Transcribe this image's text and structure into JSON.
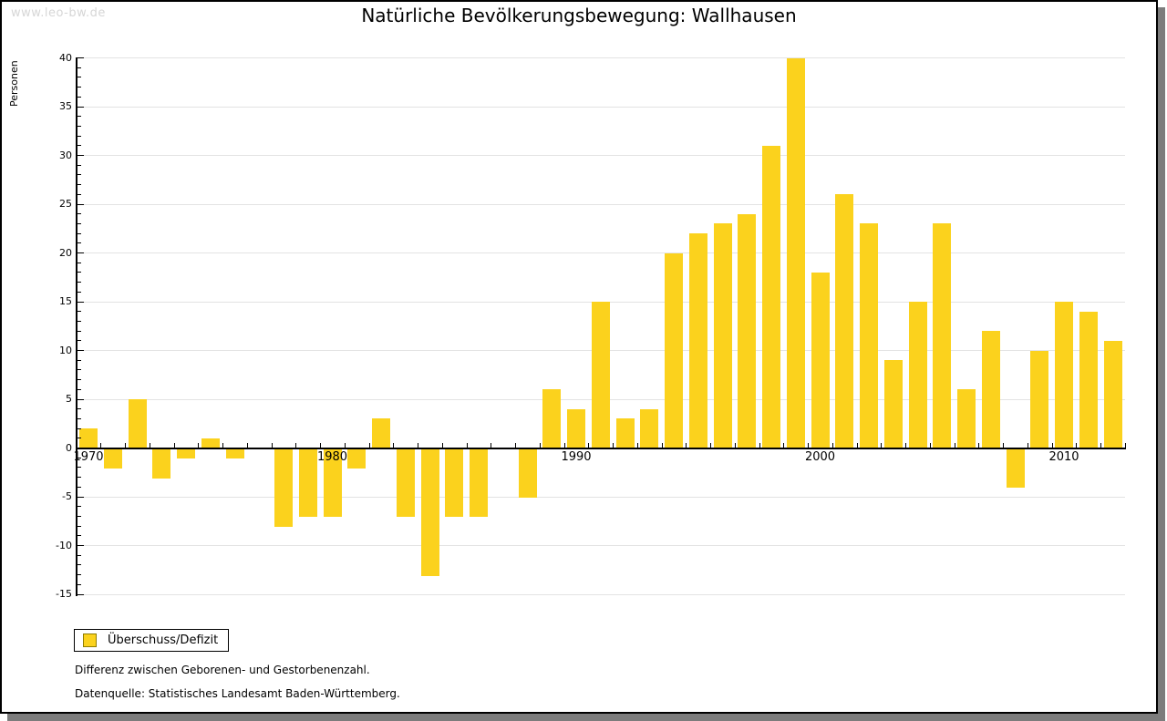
{
  "watermark": "www.leo-bw.de",
  "title": "Natürliche Bevölkerungsbewegung: Wallhausen",
  "legend": {
    "label": "Überschuss/Defizit"
  },
  "notes": {
    "line1": "Differenz zwischen Geborenen- und Gestorbenenzahl.",
    "line2": "Datenquelle: Statistisches Landesamt Baden-Württemberg."
  },
  "colors": {
    "bar": "#FBD21D",
    "bar_border": "#8F7C00",
    "grid": "#E3E3E3",
    "axis": "#000000",
    "page_shadow": "#7C7C7C",
    "watermark_text": "#D6D6D6"
  },
  "chart_data": {
    "type": "bar",
    "title": "Natürliche Bevölkerungsbewegung: Wallhausen",
    "xlabel": "",
    "ylabel": "Personen",
    "series_name": "Überschuss/Defizit",
    "categories": [
      1970,
      1971,
      1972,
      1973,
      1974,
      1975,
      1976,
      1977,
      1978,
      1979,
      1980,
      1981,
      1982,
      1983,
      1984,
      1985,
      1986,
      1987,
      1988,
      1989,
      1990,
      1991,
      1992,
      1993,
      1994,
      1995,
      1996,
      1997,
      1998,
      1999,
      2000,
      2001,
      2002,
      2003,
      2004,
      2005,
      2006,
      2007,
      2008,
      2009,
      2010,
      2011,
      2012
    ],
    "values": [
      2,
      -2,
      5,
      -3,
      -1,
      1,
      -1,
      0,
      -8,
      -7,
      -7,
      -2,
      3,
      -7,
      -13,
      -7,
      -7,
      0,
      -5,
      6,
      4,
      15,
      3,
      4,
      20,
      22,
      23,
      24,
      31,
      40,
      18,
      26,
      23,
      9,
      15,
      23,
      6,
      12,
      -4,
      10,
      15,
      14,
      11
    ],
    "ylim": [
      -15,
      40
    ],
    "ytick_major": 5,
    "ytick_minor": 1,
    "xtick_labels": [
      "1970",
      "1980",
      "1990",
      "2000",
      "2010"
    ],
    "grid": true,
    "legend_position": "bottom-left"
  }
}
